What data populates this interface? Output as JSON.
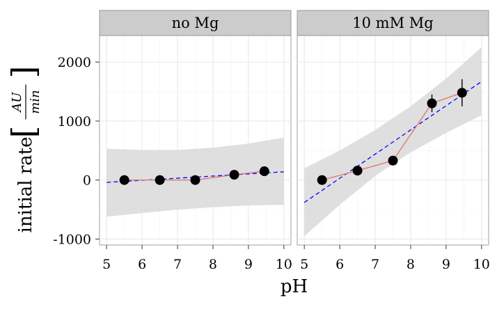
{
  "chart_data": {
    "type": "scatter",
    "xlabel": "pH",
    "ylabel": {
      "prefix": "initial rate",
      "fraction_numerator": "AU",
      "fraction_denominator": "min"
    },
    "xlim": [
      4.8,
      10.2
    ],
    "ylim": [
      -1100,
      2450
    ],
    "x_ticks": [
      5,
      6,
      7,
      8,
      9,
      10
    ],
    "y_ticks": [
      -1000,
      0,
      1000,
      2000
    ],
    "grid": true,
    "colors": {
      "points": "#000000",
      "observed_line": "#e07b6e",
      "fit_line": "#0000ff",
      "confidence_band": "#d9d9d9",
      "panel_background": "#ffffff",
      "strip_background": "#cccccc"
    },
    "panels": [
      {
        "label": "no Mg",
        "points": [
          {
            "x": 5.5,
            "y": 0,
            "err": 0
          },
          {
            "x": 6.5,
            "y": 0,
            "err": 0
          },
          {
            "x": 7.5,
            "y": 0,
            "err": 0
          },
          {
            "x": 8.6,
            "y": 90,
            "err": 0
          },
          {
            "x": 9.45,
            "y": 150,
            "err": 0
          }
        ],
        "fit": {
          "x": [
            5.0,
            10.0
          ],
          "y": [
            -40,
            140
          ]
        },
        "band": {
          "x": [
            5.0,
            6.0,
            7.0,
            8.0,
            9.0,
            10.0
          ],
          "upper": [
            530,
            510,
            510,
            550,
            620,
            720
          ],
          "lower": [
            -620,
            -560,
            -500,
            -460,
            -430,
            -420
          ]
        }
      },
      {
        "label": "10 mM Mg",
        "points": [
          {
            "x": 5.5,
            "y": 0,
            "err": 0
          },
          {
            "x": 6.5,
            "y": 160,
            "err": 0
          },
          {
            "x": 7.5,
            "y": 330,
            "err": 0
          },
          {
            "x": 8.6,
            "y": 1300,
            "err": 150
          },
          {
            "x": 9.45,
            "y": 1480,
            "err": 230
          }
        ],
        "fit": {
          "x": [
            5.0,
            10.0
          ],
          "y": [
            -380,
            1670
          ]
        },
        "band": {
          "x": [
            5.0,
            6.0,
            7.0,
            8.0,
            9.0,
            10.0
          ],
          "upper": [
            200,
            500,
            850,
            1250,
            1720,
            2250
          ],
          "lower": [
            -950,
            -420,
            70,
            470,
            800,
            1100
          ]
        }
      }
    ]
  }
}
